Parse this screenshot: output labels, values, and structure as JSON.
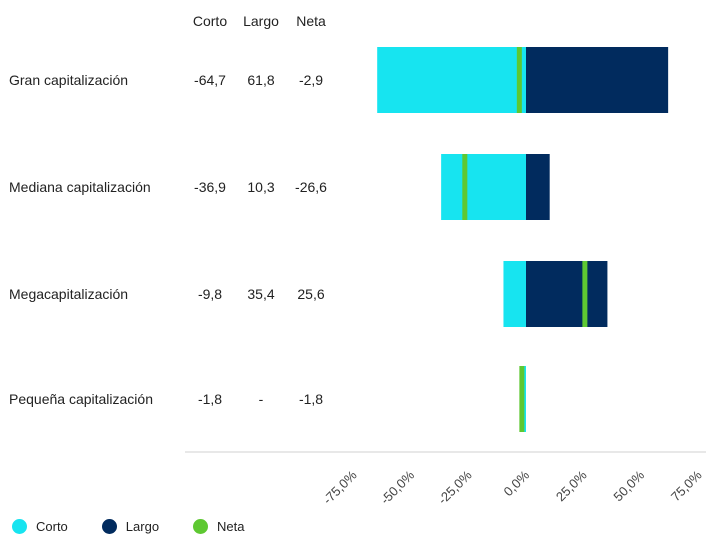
{
  "chart_data": {
    "type": "bar",
    "orientation": "horizontal",
    "stacked": "diverging",
    "table_headers": [
      "Corto",
      "Largo",
      "Neta"
    ],
    "categories": [
      "Gran capitalización",
      "Mediana capitalización",
      "Megacapitalización",
      "Pequeña capitalización"
    ],
    "series": [
      {
        "name": "Corto",
        "color": "#17e4f0",
        "values": [
          -64.7,
          -36.9,
          -9.8,
          -1.8
        ],
        "labels": [
          "-64,7",
          "-36,9",
          "-9,8",
          "-1,8"
        ]
      },
      {
        "name": "Largo",
        "color": "#012b5e",
        "values": [
          61.8,
          10.3,
          35.4,
          0
        ],
        "labels": [
          "61,8",
          "10,3",
          "35,4",
          "-"
        ]
      },
      {
        "name": "Neta",
        "color": "#5ec832",
        "values": [
          -2.9,
          -26.6,
          25.6,
          -1.8
        ],
        "labels": [
          "-2,9",
          "-26,6",
          "25,6",
          "-1,8"
        ]
      }
    ],
    "x_ticks": [
      "-75,0%",
      "-50,0%",
      "-25,0%",
      "0,0%",
      "25,0%",
      "50,0%",
      "75,0%"
    ],
    "x_tick_values": [
      -75,
      -50,
      -25,
      0,
      25,
      50,
      75
    ],
    "xlim": [
      -75,
      75
    ],
    "grid": false,
    "legend_position": "bottom-left"
  }
}
